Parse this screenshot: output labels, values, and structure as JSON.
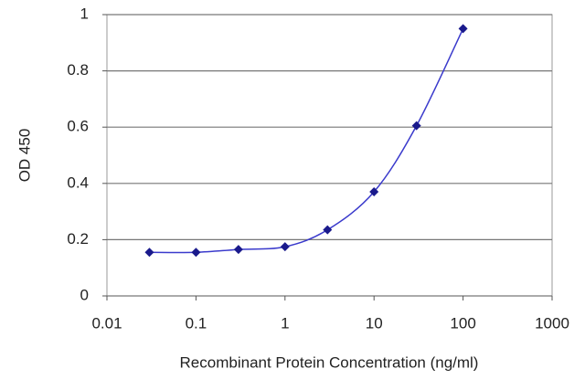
{
  "chart_data": {
    "type": "scatter",
    "xlabel": "Recombinant Protein Concentration (ng/ml)",
    "ylabel": "OD 450",
    "xscale": "log",
    "x": [
      0.03,
      0.1,
      0.3,
      1,
      3,
      10,
      30,
      100
    ],
    "series": [
      {
        "color": "#1a1a8c",
        "line_color": "#3a3acc",
        "values": [
          0.155,
          0.155,
          0.165,
          0.175,
          0.235,
          0.37,
          0.605,
          0.95
        ]
      }
    ],
    "xlim": [
      0.01,
      1000
    ],
    "xticks": [
      0.01,
      0.1,
      1,
      10,
      100,
      1000
    ],
    "ylim": [
      0,
      1
    ],
    "yticks": [
      0,
      0.2,
      0.4,
      0.6,
      0.8,
      1
    ],
    "grid": true
  }
}
